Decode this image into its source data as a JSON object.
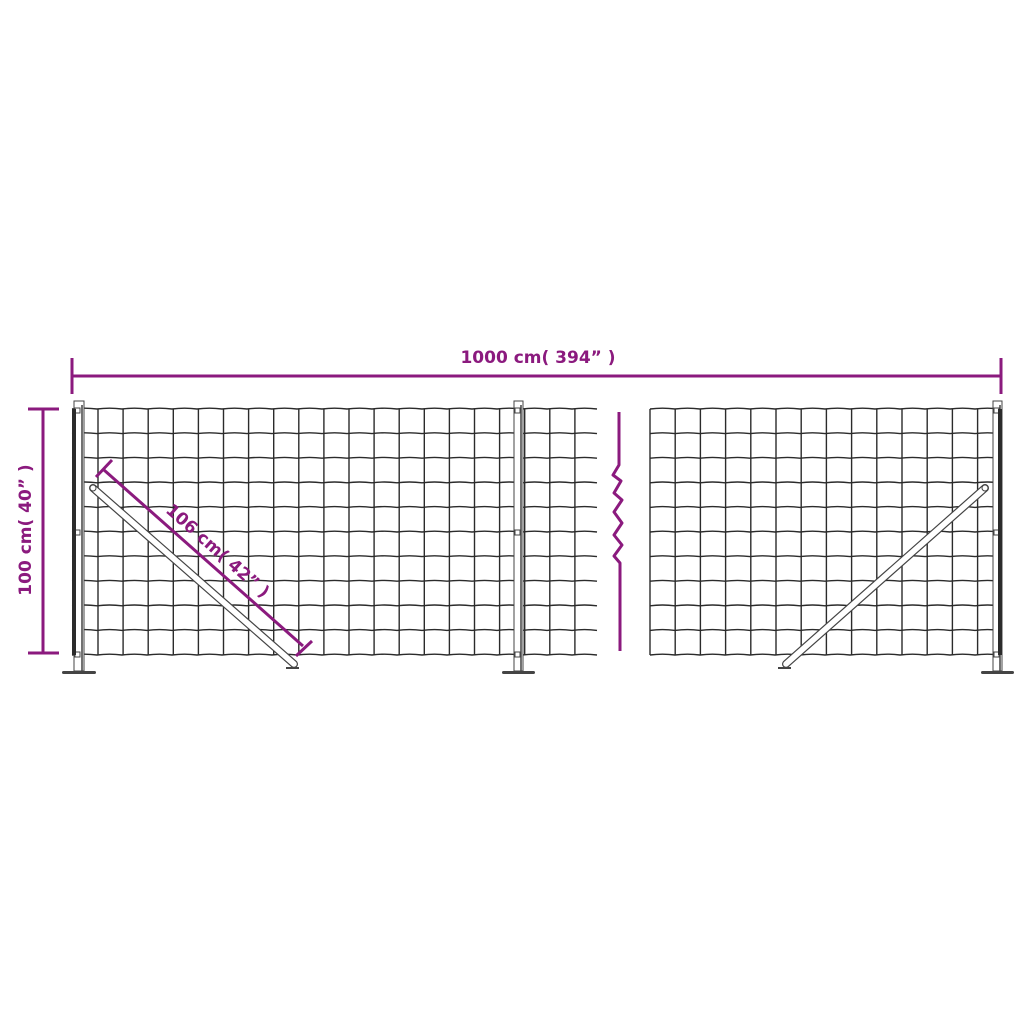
{
  "colors": {
    "dimension": "#8b1a7e",
    "mesh": "#2b2b2b",
    "post": "#444444"
  },
  "dimensions": {
    "length": "1000 cm( 394”  )",
    "height": "100 cm( 40”  )",
    "brace": "106 cm( 42”  )"
  },
  "mesh": {
    "horizontal_wires": 11
  },
  "symbols": {
    "break": "zigzag-break-icon"
  }
}
